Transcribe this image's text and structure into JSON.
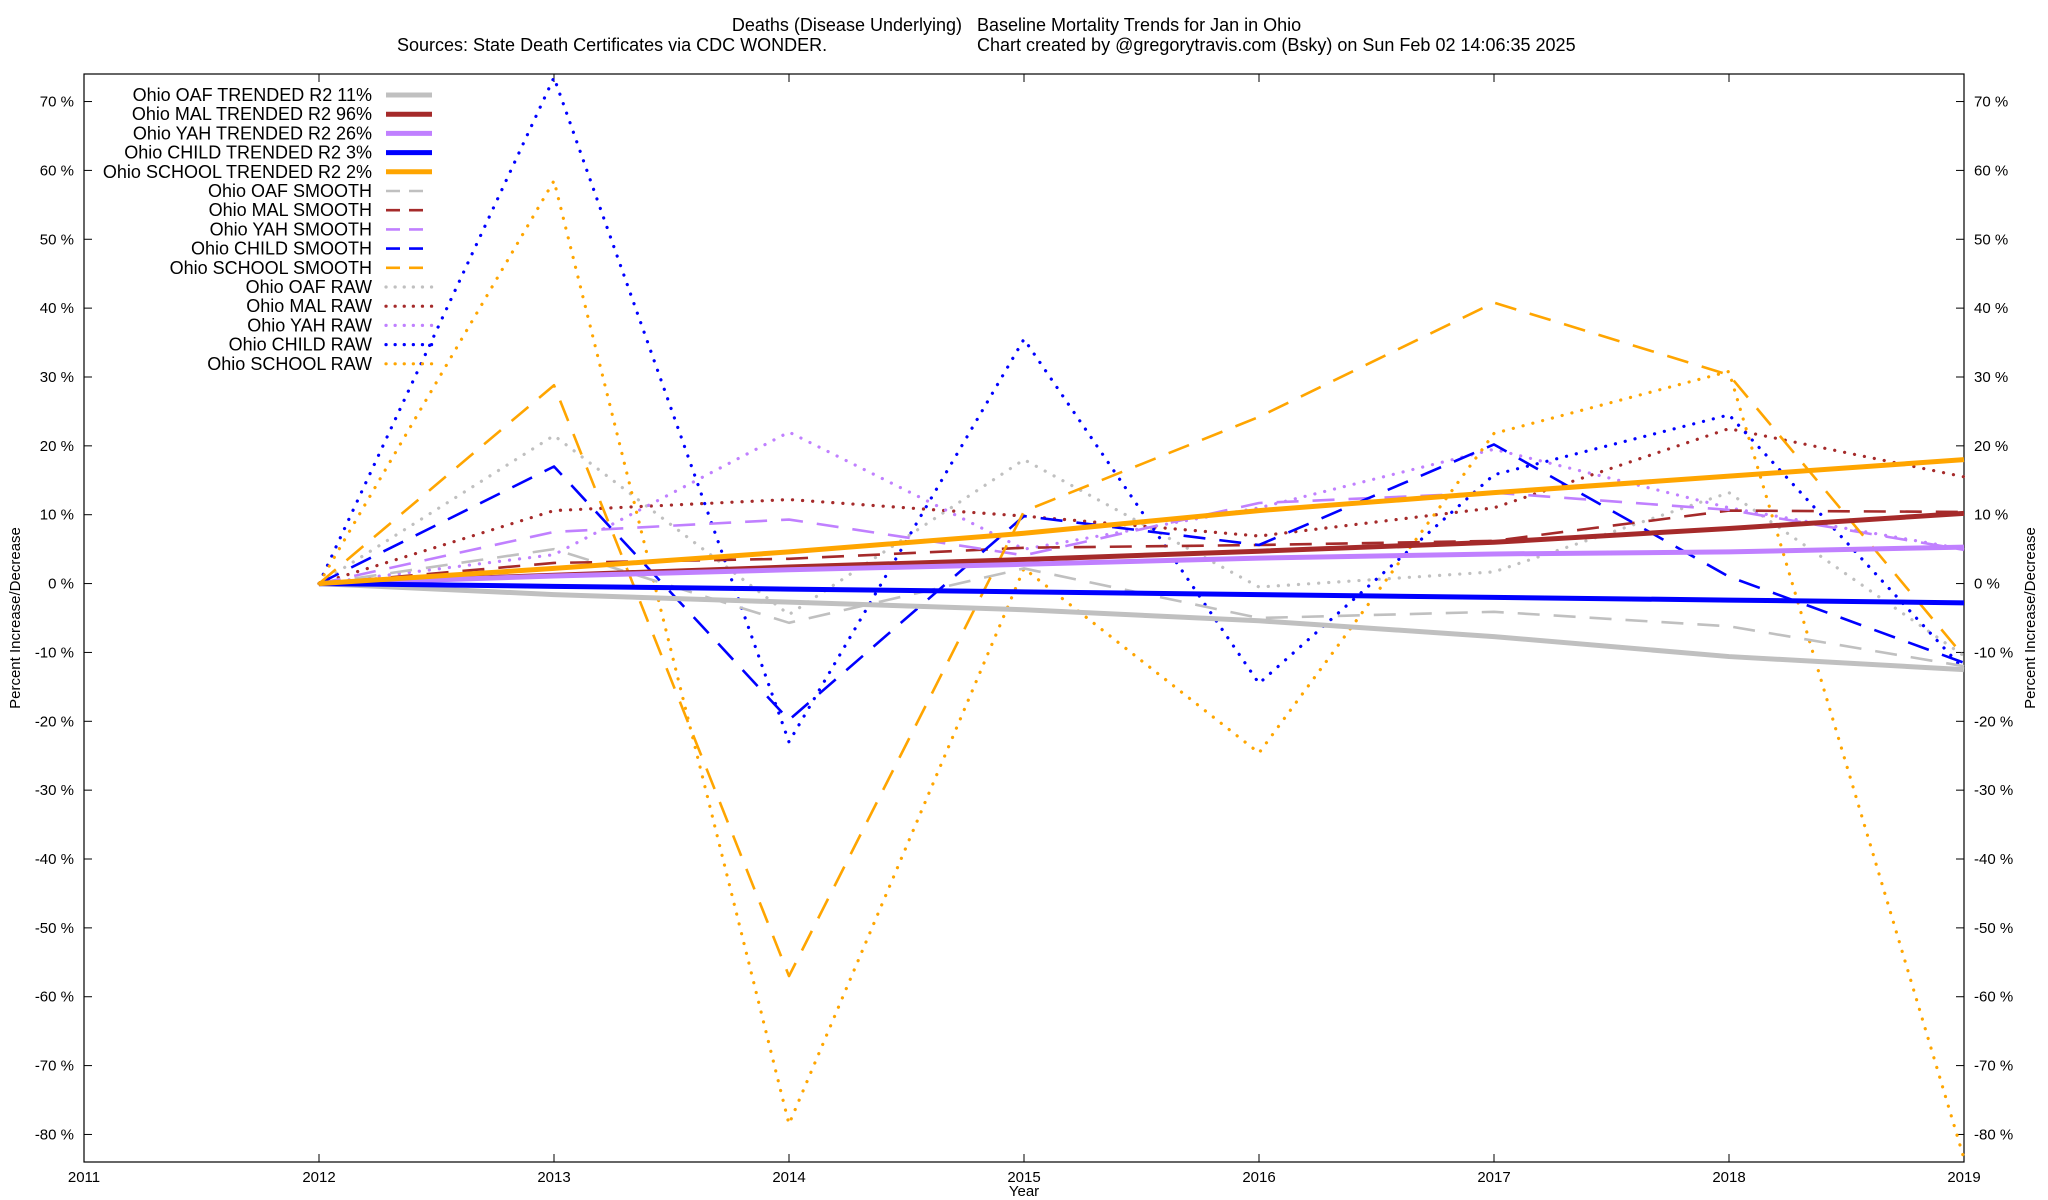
{
  "title": {
    "line1_left": "Deaths (Disease Underlying)",
    "line1_right": "Baseline Mortality Trends for Jan in Ohio",
    "line2_left": "Sources: State Death Certificates via CDC WONDER.",
    "line2_right": "Chart created by @gregorytravis.com (Bsky) on Sun Feb 02 14:06:35 2025"
  },
  "chart_data": {
    "type": "line",
    "xlabel": "Year",
    "ylabel": "Percent Increase/Decrease",
    "y2label": "Percent Increase/Decrease",
    "xlim": [
      2011,
      2019
    ],
    "ylim": [
      -84,
      74
    ],
    "x_ticks": [
      "2011",
      "2012",
      "2013",
      "2014",
      "2015",
      "2016",
      "2017",
      "2018",
      "2019"
    ],
    "y_ticks": [
      "70 %",
      "60 %",
      "50 %",
      "40 %",
      "30 %",
      "20 %",
      "10 %",
      "0 %",
      "-10 %",
      "-20 %",
      "-30 %",
      "-40 %",
      "-50 %",
      "-60 %",
      "-70 %",
      "-80 %"
    ],
    "y_tick_values": [
      70,
      60,
      50,
      40,
      30,
      20,
      10,
      0,
      -10,
      -20,
      -30,
      -40,
      -50,
      -60,
      -70,
      -80
    ],
    "grid": false,
    "legend_position": "top-left",
    "x": [
      2012,
      2013,
      2014,
      2015,
      2016,
      2017,
      2018,
      2019
    ],
    "series": [
      {
        "name": "Ohio OAF TRENDED R2",
        "r2": "11%",
        "style": "trend",
        "color": "#c0c0c0",
        "values": [
          0,
          -1.6,
          -2.7,
          -3.8,
          -5.4,
          -7.7,
          -10.6,
          -12.5
        ]
      },
      {
        "name": "Ohio MAL TRENDED R2",
        "r2": "96%",
        "style": "trend",
        "color": "#a52a2a",
        "values": [
          0,
          1.2,
          2.4,
          3.5,
          4.7,
          6.0,
          8.0,
          10.2
        ]
      },
      {
        "name": "Ohio YAH TRENDED R2",
        "r2": "26%",
        "style": "trend",
        "color": "#c080ff",
        "values": [
          0,
          1.1,
          2.0,
          2.8,
          3.7,
          4.3,
          4.6,
          5.3
        ]
      },
      {
        "name": "Ohio CHILD TRENDED R2",
        "r2": "3%",
        "style": "trend",
        "color": "#0000ff",
        "values": [
          0,
          -0.4,
          -0.8,
          -1.2,
          -1.6,
          -2.0,
          -2.4,
          -2.8
        ]
      },
      {
        "name": "Ohio SCHOOL TRENDED R2",
        "r2": "2%",
        "style": "trend",
        "color": "#ffa500",
        "values": [
          0,
          2.2,
          4.6,
          7.3,
          10.6,
          13.2,
          15.6,
          18.0
        ]
      },
      {
        "name": "Ohio OAF SMOOTH",
        "style": "smooth",
        "color": "#c0c0c0",
        "values": [
          0,
          5.0,
          -5.7,
          2.2,
          -5.0,
          -4.1,
          -6.2,
          -12.0
        ]
      },
      {
        "name": "Ohio MAL SMOOTH",
        "style": "smooth",
        "color": "#a52a2a",
        "values": [
          0,
          3.0,
          3.6,
          5.2,
          5.6,
          6.2,
          10.6,
          10.4
        ]
      },
      {
        "name": "Ohio YAH SMOOTH",
        "style": "smooth",
        "color": "#c080ff",
        "values": [
          0,
          7.5,
          9.3,
          4.1,
          11.7,
          13.2,
          10.7,
          4.9
        ]
      },
      {
        "name": "Ohio CHILD SMOOTH",
        "style": "smooth",
        "color": "#0000ff",
        "values": [
          0,
          17.0,
          -19.8,
          9.8,
          5.6,
          20.2,
          1.0,
          -11.5
        ]
      },
      {
        "name": "Ohio SCHOOL SMOOTH",
        "style": "smooth",
        "color": "#ffa500",
        "values": [
          0,
          28.8,
          -57.0,
          10.5,
          24.2,
          40.8,
          30.3,
          -10.6
        ]
      },
      {
        "name": "Ohio OAF RAW",
        "style": "raw",
        "color": "#c0c0c0",
        "values": [
          0,
          21.5,
          -4.5,
          18.0,
          -0.5,
          1.7,
          13.2,
          -10.5
        ]
      },
      {
        "name": "Ohio MAL RAW",
        "style": "raw",
        "color": "#a52a2a",
        "values": [
          0,
          10.6,
          12.2,
          9.8,
          6.9,
          11.0,
          22.5,
          15.5
        ]
      },
      {
        "name": "Ohio YAH RAW",
        "style": "raw",
        "color": "#c080ff",
        "values": [
          0,
          4.2,
          22.0,
          5.0,
          11.0,
          19.5,
          11.0,
          5.0
        ]
      },
      {
        "name": "Ohio CHILD RAW",
        "style": "raw",
        "color": "#0000ff",
        "values": [
          0,
          73.5,
          -23.0,
          35.5,
          -14.5,
          15.8,
          24.5,
          -12.5
        ]
      },
      {
        "name": "Ohio SCHOOL RAW",
        "style": "raw",
        "color": "#ffa500",
        "values": [
          0,
          58.5,
          -78.5,
          2.2,
          -24.6,
          21.8,
          30.8,
          -83.5
        ]
      }
    ]
  }
}
